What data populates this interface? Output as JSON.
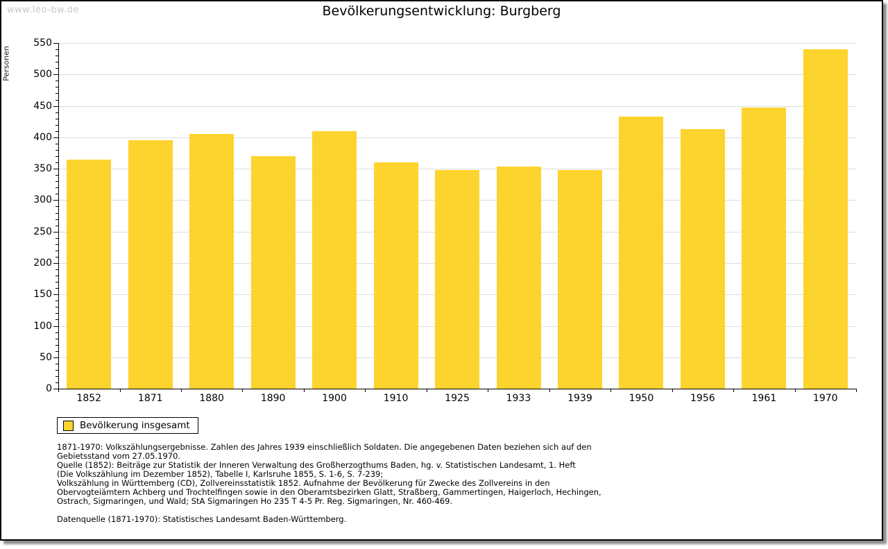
{
  "watermark": "www.leo-bw.de",
  "title": "Bevölkerungsentwicklung: Burgberg",
  "chart_data": {
    "type": "bar",
    "title": "Bevölkerungsentwicklung: Burgberg",
    "xlabel": "",
    "ylabel": "Personen",
    "ylim": [
      0,
      550
    ],
    "ytick_step": 50,
    "ytick_minor_step": 10,
    "grid": "horizontal",
    "legend_position": "bottom-left",
    "bar_color": "#FDD32D",
    "gridline_color": "#dddddd",
    "categories": [
      "1852",
      "1871",
      "1880",
      "1890",
      "1900",
      "1910",
      "1925",
      "1933",
      "1939",
      "1950",
      "1956",
      "1961",
      "1970"
    ],
    "series": [
      {
        "name": "Bevölkerung insgesamt",
        "values": [
          365,
          395,
          405,
          370,
          410,
          360,
          348,
          353,
          348,
          433,
          413,
          447,
          540
        ]
      }
    ]
  },
  "legend": {
    "label": "Bevölkerung insgesamt",
    "swatch_color": "#FDD32D"
  },
  "footer": {
    "lines": [
      "1871-1970: Volkszählungsergebnisse. Zahlen des Jahres 1939 einschließlich Soldaten. Die angegebenen Daten beziehen sich auf den",
      "Gebietsstand vom 27.05.1970.",
      "Quelle (1852): Beiträge zur Statistik der Inneren Verwaltung des Großherzogthums Baden, hg. v. Statistischen Landesamt, 1. Heft",
      "(Die Volkszählung im Dezember 1852), Tabelle I, Karlsruhe 1855, S. 1-6, S. 7-239;",
      "Volkszählung in Württemberg (CD), Zollvereinsstatistik 1852. Aufnahme der Bevölkerung für Zwecke des Zollvereins in den",
      "Obervogteiämtern Achberg und Trochtelfingen sowie in den Oberamtsbezirken Glatt, Straßberg, Gammertingen, Haigerloch, Hechingen,",
      "Ostrach, Sigmaringen, und Wald; StA Sigmaringen Ho 235 T 4-5 Pr. Reg. Sigmaringen, Nr. 460-469."
    ],
    "datasource": "Datenquelle (1871-1970): Statistisches Landesamt Baden-Württemberg."
  }
}
